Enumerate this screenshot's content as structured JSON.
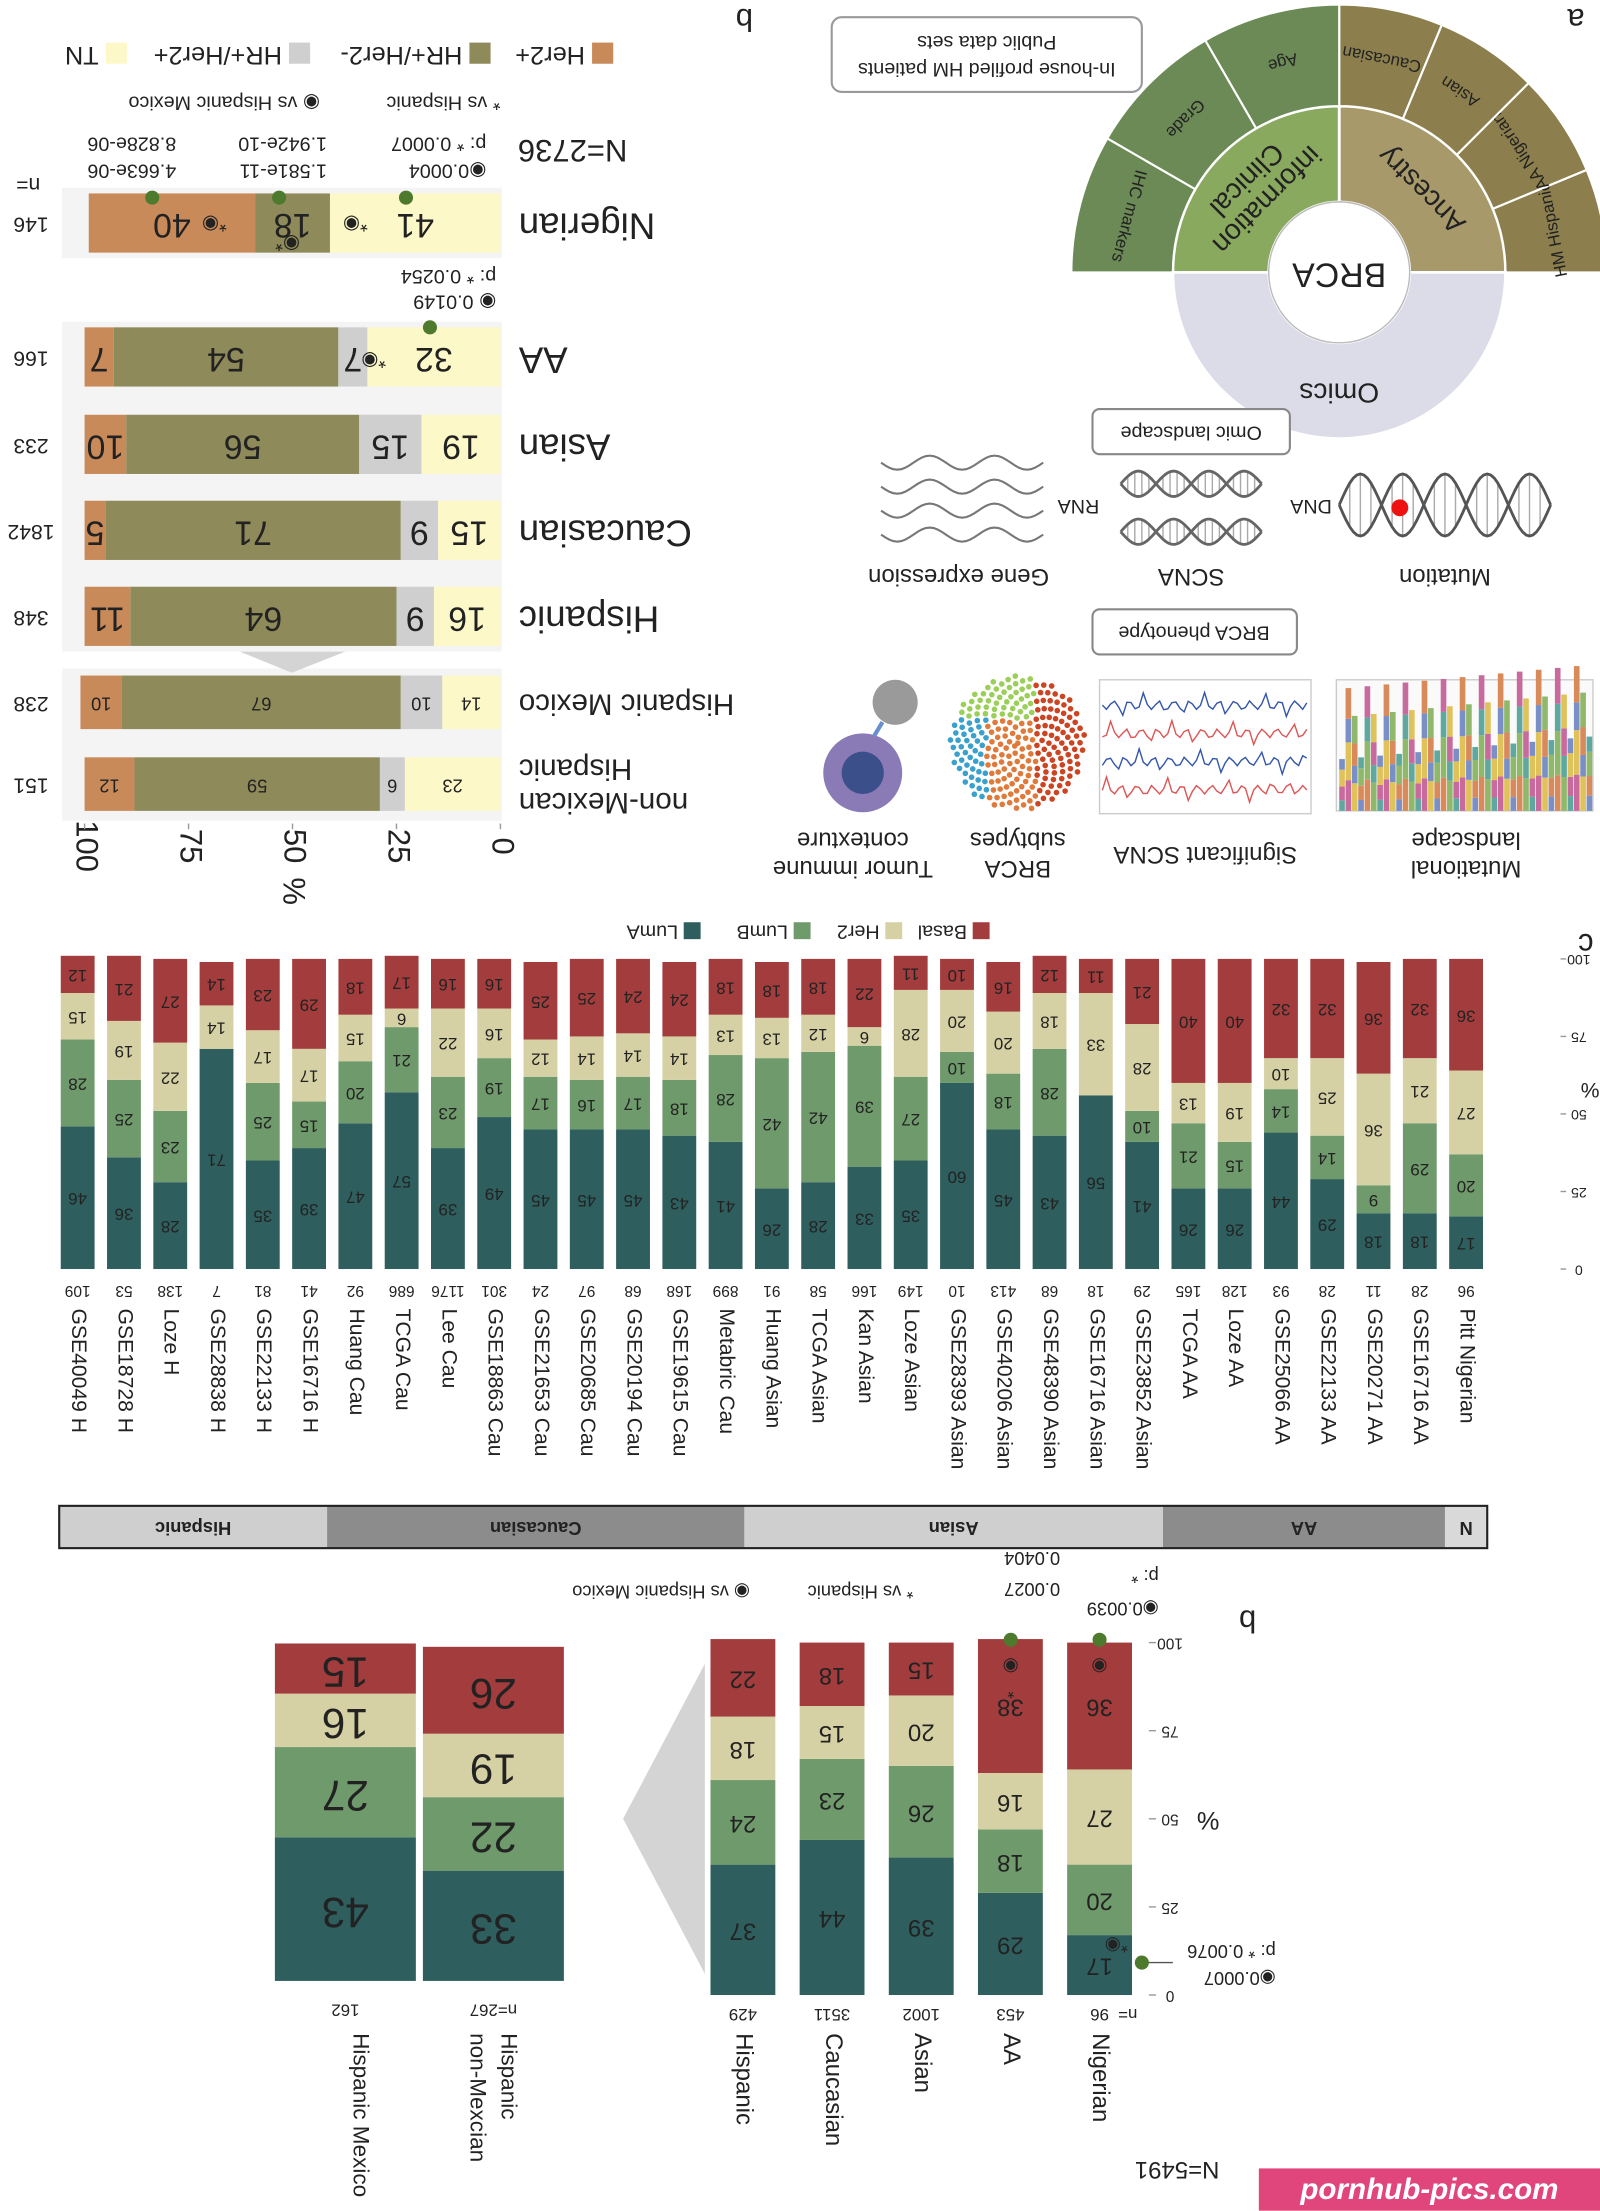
{
  "chart_data": [
    {
      "type": "bar",
      "stacked": true,
      "panel_label": "b",
      "total_label": "N=5491",
      "categories": [
        "Nigerian",
        "AA",
        "Asian",
        "Caucasian",
        "Hispanic"
      ],
      "n_prefix": "n=",
      "n": [
        96,
        453,
        1002,
        3511,
        429
      ],
      "series": [
        {
          "color": "#2e5e5e",
          "values": [
            17,
            29,
            39,
            44,
            37
          ]
        },
        {
          "color": "#6f9a6b",
          "values": [
            20,
            18,
            26,
            23,
            24
          ]
        },
        {
          "color": "#d6d1a4",
          "values": [
            27,
            16,
            20,
            15,
            18
          ]
        },
        {
          "color": "#a33c3c",
          "values": [
            36,
            38,
            15,
            18,
            22
          ]
        }
      ],
      "ylim": [
        0,
        100
      ],
      "yticks": [
        0,
        25,
        50,
        75,
        100
      ],
      "ylabel": "%",
      "annotations": [
        "p: * 0.0076",
        "◉0.0007",
        "p: *",
        "◉0.0039",
        "0.0404",
        "0.0027",
        "◉",
        "◉",
        "*",
        "*◉"
      ],
      "sig_legend": [
        "* vs Hispanic",
        "◉ vs Hispanic Mexico"
      ]
    },
    {
      "type": "bar",
      "stacked": true,
      "categories": [
        [
          "Hispanic",
          "non-Mexcian"
        ],
        [
          "Hispanic Mexico"
        ]
      ],
      "n": [
        {
          "value": 267,
          "label": "n=267"
        },
        162
      ],
      "series": [
        {
          "color": "#2e5e5e",
          "values": [
            33,
            43
          ]
        },
        {
          "color": "#6f9a6b",
          "values": [
            22,
            27
          ]
        },
        {
          "color": "#d6d1a4",
          "values": [
            19,
            16
          ]
        },
        {
          "color": "#a33c3c",
          "values": [
            26,
            15
          ]
        }
      ],
      "ylim": [
        0,
        100
      ]
    },
    {
      "type": "bar",
      "stacked": true,
      "panel_label": "c",
      "categories": [
        "Pitt Nigerian",
        "GSE16716 AA",
        "GSE20271 AA",
        "GSE22133 AA",
        "GSE25066 AA",
        "Loze AA",
        "TCGA AA",
        "GSE23852 Asian",
        "GSE16716 Asian",
        "GSE48390 Asian",
        "GSE40206 Asian",
        "GSE28393 Asian",
        "Loze Asian",
        "Kan Asian",
        "TCGA Asian",
        "Huang Asian",
        "Metabric Cau",
        "GSE19615 Cau",
        "GSE20194 Cau",
        "GSE20685 Cau",
        "GSE21653 Cau",
        "GSE18863 Cau",
        "Lee Cau",
        "TCGA Cau",
        "Huang Cau",
        "GSE16716 H",
        "GSE22133 H",
        "GSE28838 H",
        "Loze H",
        "GSE18728 H",
        "GSE40049 H"
      ],
      "n": [
        96,
        28,
        11,
        28,
        93,
        128,
        165,
        29,
        18,
        68,
        413,
        10,
        149,
        166,
        58,
        91,
        899,
        168,
        68,
        97,
        24,
        301,
        1176,
        686,
        92,
        41,
        81,
        7,
        138,
        53,
        109
      ],
      "series": [
        {
          "name": "LumA",
          "color": "#2e5e5e",
          "values": [
            17,
            18,
            18,
            29,
            44,
            26,
            26,
            41,
            56,
            43,
            45,
            60,
            35,
            33,
            28,
            26,
            41,
            43,
            45,
            45,
            45,
            49,
            39,
            57,
            47,
            39,
            35,
            71,
            28,
            36,
            46
          ]
        },
        {
          "name": "LumB",
          "color": "#6f9a6b",
          "values": [
            20,
            29,
            9,
            14,
            14,
            15,
            21,
            10,
            0,
            28,
            18,
            10,
            27,
            39,
            42,
            42,
            28,
            18,
            17,
            16,
            17,
            19,
            23,
            21,
            20,
            15,
            25,
            0,
            23,
            25,
            28
          ]
        },
        {
          "name": "Her2",
          "color": "#d6d1a4",
          "values": [
            27,
            21,
            36,
            25,
            10,
            19,
            13,
            28,
            33,
            18,
            20,
            20,
            28,
            6,
            12,
            13,
            13,
            14,
            14,
            14,
            12,
            16,
            22,
            6,
            15,
            17,
            17,
            14,
            22,
            19,
            15
          ]
        },
        {
          "name": "Basal",
          "color": "#a33c3c",
          "values": [
            36,
            32,
            36,
            32,
            32,
            40,
            40,
            21,
            11,
            12,
            16,
            10,
            11,
            22,
            18,
            18,
            18,
            24,
            24,
            25,
            25,
            16,
            16,
            17,
            18,
            29,
            23,
            14,
            27,
            21,
            12
          ]
        }
      ],
      "ylim": [
        0,
        100
      ],
      "yticks": [
        0,
        25,
        50,
        75,
        100
      ],
      "ylabel": "%"
    },
    {
      "type": "bar",
      "stacked": true,
      "orientation": "horizontal",
      "panel_label": "b",
      "total_label": "N=2736",
      "categories": [
        "Nigerian",
        "AA",
        "Asian",
        "Caucasian",
        "Hispanic",
        "Hispanic Mexico",
        [
          "Hispanic",
          "non-Mexican"
        ]
      ],
      "n_prefix": "n=",
      "n": [
        146,
        166,
        233,
        1842,
        348,
        238,
        151
      ],
      "series": [
        {
          "name": "TN",
          "color": "#fdf8c8",
          "values": [
            41,
            32,
            19,
            15,
            16,
            14,
            23
          ]
        },
        {
          "name": "HR+/Her2+",
          "color": "#cfcfcf",
          "values": [
            0,
            7,
            15,
            9,
            9,
            10,
            6
          ]
        },
        {
          "name": "HR+/Her2-",
          "color": "#8e8a5a",
          "values": [
            18,
            54,
            56,
            71,
            64,
            67,
            59
          ]
        },
        {
          "name": "Her2+",
          "color": "#c98a5a",
          "values": [
            40,
            7,
            10,
            5,
            11,
            10,
            12
          ]
        }
      ],
      "xlim": [
        0,
        100
      ],
      "xticks": [
        0,
        25,
        50,
        75,
        100
      ],
      "xlabel": "%",
      "annotations": [
        "p: * 0.0007",
        "◉0.0004",
        "1.942e-10",
        "1.581e-11",
        "8.828e-06",
        "4.663e-06",
        "p: * 0.0254",
        "◉ 0.0149",
        "*◉",
        "◉*",
        "*◉",
        "*◉"
      ],
      "sig_legend": [
        "* vs Hispanic",
        "◉ vs Hispanic Mexico"
      ]
    }
  ],
  "ancestry_strip": [
    "N",
    "AA",
    "Asian",
    "Caucasian",
    "Hispanic"
  ],
  "panel_a": {
    "label": "a",
    "center": "BRCA",
    "sectors": [
      {
        "label": [
          "Ancestry"
        ],
        "subs": [
          "HM Hispanic",
          "AA Nigerian",
          "Asian",
          "Caucasian"
        ]
      },
      {
        "label": [
          "Clinical",
          "information"
        ],
        "subs": [
          "Age",
          "Grade",
          "IHC markers"
        ]
      },
      {
        "label": [
          "Omics"
        ]
      }
    ],
    "data_box": [
      "In-house profiled HM patients",
      "Public data sets"
    ],
    "omic_box": "Omic landscape",
    "omics": [
      "Mutation",
      "SCNA",
      "Gene expression"
    ],
    "molecules": [
      "DNA",
      "RNA"
    ],
    "phenotype_box": "BRCA phenotype",
    "phenotypes": [
      [
        "Mutational",
        "landscape"
      ],
      [
        "Significant SCNA"
      ],
      [
        "BRCA",
        "subtypes"
      ],
      [
        "Tumor immune",
        "contexture"
      ]
    ]
  },
  "watermark": "pornhub-pics.com"
}
